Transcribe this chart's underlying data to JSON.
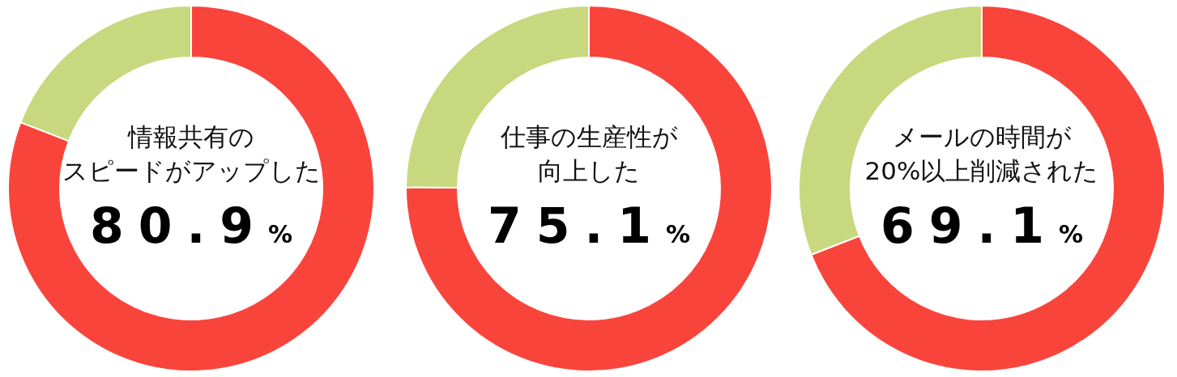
{
  "chart_data": [
    {
      "type": "donut",
      "title": "情報共有の",
      "subtitle": "スピードがアップした",
      "categories": [
        null,
        null
      ],
      "values": [
        80.9,
        19.1
      ],
      "colors": [
        "#f9443c",
        "#c7d87f"
      ],
      "value_labels": [
        "80.9%",
        null
      ]
    },
    {
      "type": "donut",
      "title": "仕事の生産性が",
      "subtitle": "向上した",
      "categories": [
        null,
        null
      ],
      "values": [
        75.1,
        24.9
      ],
      "colors": [
        "#f9443c",
        "#c7d87f"
      ],
      "value_labels": [
        "75.1%",
        null
      ]
    },
    {
      "type": "donut",
      "title": "メールの時間が",
      "subtitle": "20%以上削減された",
      "categories": [
        null,
        null
      ],
      "values": [
        69.1,
        30.9
      ],
      "colors": [
        "#f9443c",
        "#c7d87f"
      ],
      "value_labels": [
        "69.1%",
        null
      ]
    }
  ]
}
